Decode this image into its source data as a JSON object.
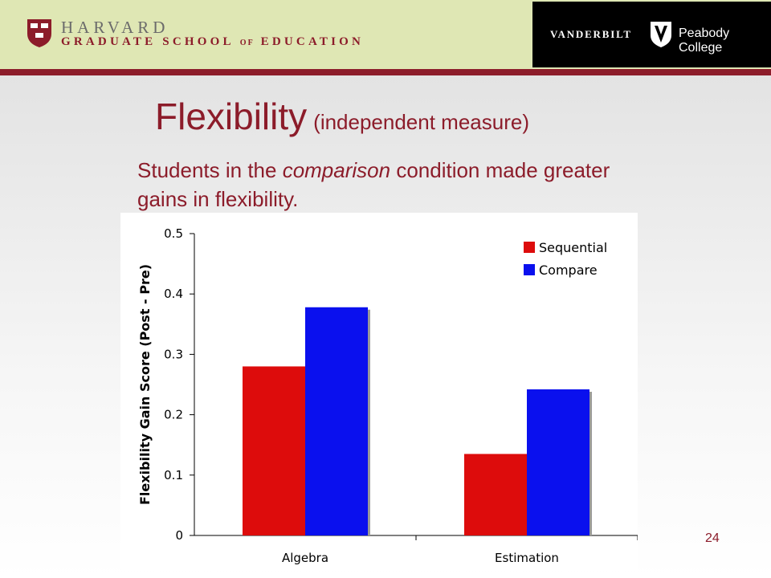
{
  "header": {
    "harvard_name": "HARVARD",
    "harvard_school": "GRADUATE SCHOOL",
    "harvard_of": "OF",
    "harvard_school_end": "EDUCATION",
    "vanderbilt_name": "VANDERBILT",
    "vanderbilt_college": "Peabody College",
    "colors": {
      "banner": "#dfe7b4",
      "crimson": "#8c1c2a",
      "vanderbilt_bg": "#000000"
    }
  },
  "slide": {
    "title": "Flexibility",
    "title_sub": "(independent measure)",
    "subtitle_part1": "Students in the ",
    "subtitle_emph": "comparison",
    "subtitle_part2": " condition made greater gains in flexibility.",
    "page_number": "24"
  },
  "chart_data": {
    "type": "bar",
    "categories": [
      "Algebra",
      "Estimation"
    ],
    "series": [
      {
        "name": "Sequential",
        "values": [
          0.28,
          0.135
        ],
        "color": "#dd0c0c"
      },
      {
        "name": "Compare",
        "values": [
          0.378,
          0.242
        ],
        "color": "#0a10ee"
      }
    ],
    "ylabel": "Flexibility Gain Score (Post - Pre)",
    "xlabel": "",
    "ylim": [
      0,
      0.5
    ],
    "yticks": [
      "0",
      "0.1",
      "0.2",
      "0.3",
      "0.4",
      "0.5"
    ],
    "grid": false,
    "legend_placement": "top-right"
  }
}
